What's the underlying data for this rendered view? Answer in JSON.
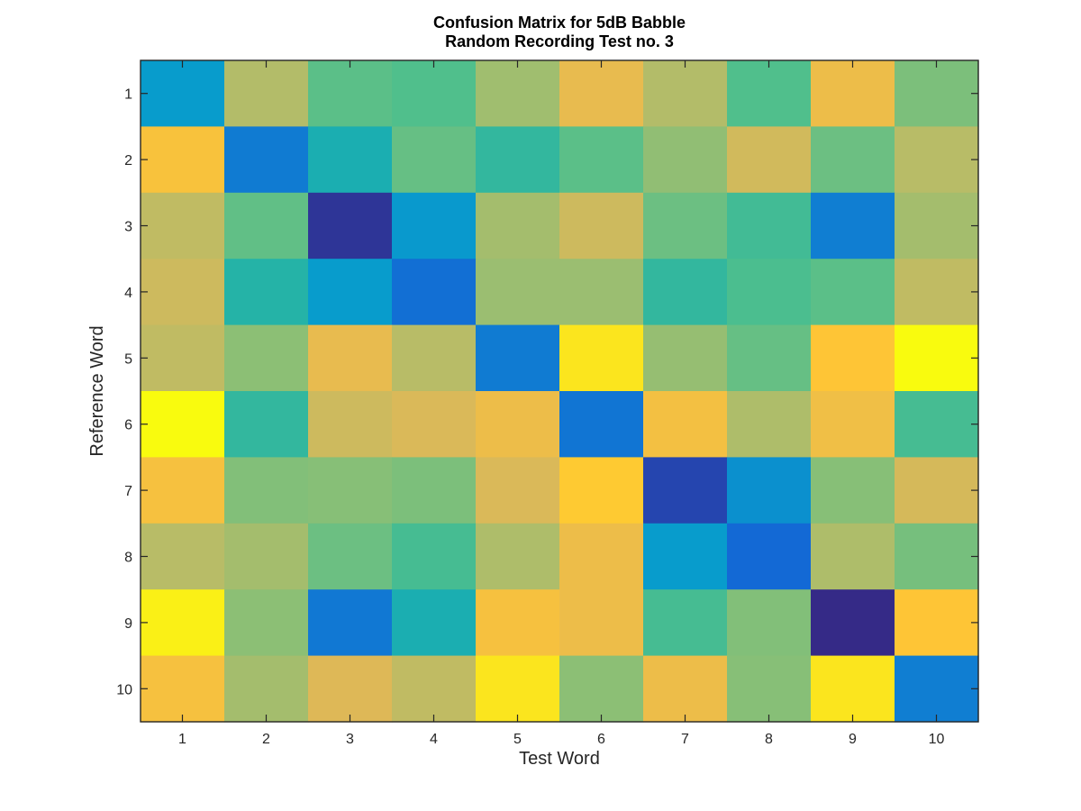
{
  "chart_data": {
    "type": "heatmap",
    "title": "Confusion Matrix for 5dB Babble",
    "subtitle": "Random Recording Test no. 3",
    "xlabel": "Test Word",
    "ylabel": "Reference Word",
    "x_categories": [
      "1",
      "2",
      "3",
      "4",
      "5",
      "6",
      "7",
      "8",
      "9",
      "10"
    ],
    "y_categories": [
      "1",
      "2",
      "3",
      "4",
      "5",
      "6",
      "7",
      "8",
      "9",
      "10"
    ],
    "colormap": "parula",
    "colorscale": "relative (normalized 0 to 1, no colorbar shown)",
    "legend": "none",
    "grid": false,
    "values": [
      [
        0.3,
        0.69,
        0.52,
        0.5,
        0.65,
        0.82,
        0.69,
        0.5,
        0.84,
        0.58
      ],
      [
        0.88,
        0.19,
        0.38,
        0.54,
        0.44,
        0.52,
        0.62,
        0.76,
        0.55,
        0.7
      ],
      [
        0.72,
        0.53,
        0.02,
        0.29,
        0.66,
        0.75,
        0.55,
        0.47,
        0.2,
        0.66
      ],
      [
        0.75,
        0.41,
        0.3,
        0.15,
        0.64,
        0.64,
        0.44,
        0.49,
        0.52,
        0.72
      ],
      [
        0.72,
        0.61,
        0.82,
        0.7,
        0.19,
        0.96,
        0.63,
        0.54,
        0.9,
        1.0
      ],
      [
        1.0,
        0.44,
        0.75,
        0.78,
        0.84,
        0.17,
        0.86,
        0.68,
        0.85,
        0.48
      ],
      [
        0.87,
        0.59,
        0.6,
        0.58,
        0.78,
        0.91,
        0.05,
        0.26,
        0.6,
        0.77
      ],
      [
        0.7,
        0.66,
        0.55,
        0.48,
        0.68,
        0.84,
        0.3,
        0.13,
        0.68,
        0.57
      ],
      [
        0.98,
        0.61,
        0.18,
        0.38,
        0.87,
        0.84,
        0.48,
        0.59,
        0.0,
        0.9
      ],
      [
        0.87,
        0.66,
        0.79,
        0.72,
        0.96,
        0.61,
        0.84,
        0.6,
        0.96,
        0.2
      ]
    ]
  }
}
